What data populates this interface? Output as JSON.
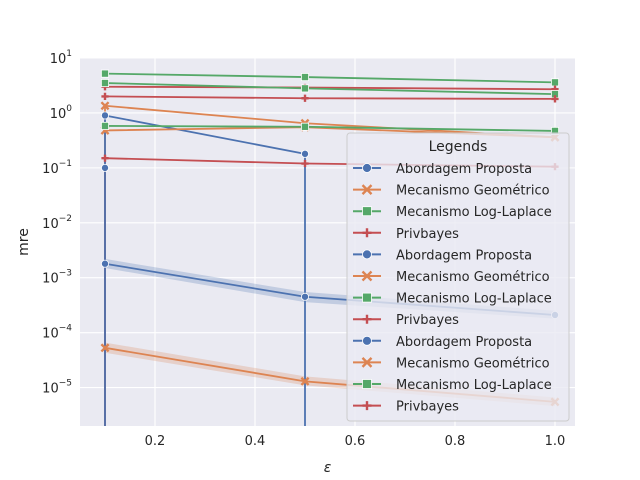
{
  "colors": {
    "background": "#eaeaf2",
    "grid": "#ffffff",
    "blue": "#4c72b0",
    "orange": "#dd8452",
    "green": "#55a868",
    "red": "#c44e52"
  },
  "chart_data": {
    "type": "line",
    "xlabel": "ε",
    "ylabel": "mre",
    "yscale": "log",
    "xlim": [
      0.05,
      1.04
    ],
    "ylim": [
      2e-06,
      10
    ],
    "grid": true,
    "background": "#eaeaf2",
    "xticks": [
      {
        "value": 0.2,
        "label": "0.2"
      },
      {
        "value": 0.4,
        "label": "0.4"
      },
      {
        "value": 0.6,
        "label": "0.6"
      },
      {
        "value": 0.8,
        "label": "0.8"
      },
      {
        "value": 1.0,
        "label": "1.0"
      }
    ],
    "yticks": [
      {
        "value": 1e-05,
        "base": "10",
        "exp": "−5"
      },
      {
        "value": 0.0001,
        "base": "10",
        "exp": "−4"
      },
      {
        "value": 0.001,
        "base": "10",
        "exp": "−3"
      },
      {
        "value": 0.01,
        "base": "10",
        "exp": "−2"
      },
      {
        "value": 0.1,
        "base": "10",
        "exp": "−1"
      },
      {
        "value": 1,
        "base": "10",
        "exp": "0"
      },
      {
        "value": 10,
        "base": "10",
        "exp": "1"
      }
    ],
    "legend": {
      "title": "Legends",
      "placement": "right",
      "entries": [
        {
          "label": "Abordagem Proposta",
          "color": "#4c72b0",
          "marker": "circle"
        },
        {
          "label": "Mecanismo Geométrico",
          "color": "#dd8452",
          "marker": "x"
        },
        {
          "label": "Mecanismo Log-Laplace",
          "color": "#55a868",
          "marker": "square"
        },
        {
          "label": "Privbayes",
          "color": "#c44e52",
          "marker": "plus"
        },
        {
          "label": "Abordagem Proposta",
          "color": "#4c72b0",
          "marker": "circle"
        },
        {
          "label": "Mecanismo Geométrico",
          "color": "#dd8452",
          "marker": "x"
        },
        {
          "label": "Mecanismo Log-Laplace",
          "color": "#55a868",
          "marker": "square"
        },
        {
          "label": "Privbayes",
          "color": "#c44e52",
          "marker": "plus"
        },
        {
          "label": "Abordagem Proposta",
          "color": "#4c72b0",
          "marker": "circle"
        },
        {
          "label": "Mecanismo Geométrico",
          "color": "#dd8452",
          "marker": "x"
        },
        {
          "label": "Mecanismo Log-Laplace",
          "color": "#55a868",
          "marker": "square"
        },
        {
          "label": "Privbayes",
          "color": "#c44e52",
          "marker": "plus"
        }
      ]
    },
    "series": [
      {
        "group": 1,
        "method": "Abordagem Proposta",
        "color": "#4c72b0",
        "marker": "circle",
        "x": [
          0.1,
          0.5
        ],
        "y": [
          0.9,
          0.18
        ]
      },
      {
        "group": 1,
        "method": "Mecanismo Geométrico",
        "color": "#dd8452",
        "marker": "x",
        "x": [
          0.1,
          0.5,
          1.0
        ],
        "y": [
          1.35,
          0.65,
          0.36
        ]
      },
      {
        "group": 1,
        "method": "Mecanismo Log-Laplace",
        "color": "#55a868",
        "marker": "square",
        "x": [
          0.1,
          0.5,
          1.0
        ],
        "y": [
          5.2,
          4.5,
          3.6
        ]
      },
      {
        "group": 1,
        "method": "Privbayes",
        "color": "#c44e52",
        "marker": "plus",
        "x": [
          0.1,
          0.5,
          1.0
        ],
        "y": [
          3.0,
          2.9,
          2.7
        ]
      },
      {
        "group": 2,
        "method": "Abordagem Proposta",
        "color": "#4c72b0",
        "marker": "circle",
        "x": [
          0.1
        ],
        "y": [
          0.1
        ]
      },
      {
        "group": 2,
        "method": "Mecanismo Geométrico",
        "color": "#dd8452",
        "marker": "x",
        "x": [
          0.1,
          0.5,
          1.0
        ],
        "y": [
          0.48,
          0.55,
          0.36
        ]
      },
      {
        "group": 2,
        "method": "Mecanismo Log-Laplace",
        "color": "#55a868",
        "marker": "square",
        "x": [
          0.1,
          0.5,
          1.0
        ],
        "y": [
          0.58,
          0.56,
          0.47
        ]
      },
      {
        "group": 2,
        "method": "Privbayes",
        "color": "#c44e52",
        "marker": "plus",
        "x": [
          0.1,
          0.5,
          1.0
        ],
        "y": [
          0.15,
          0.12,
          0.105
        ]
      },
      {
        "group": 3,
        "method": "Abordagem Proposta",
        "color": "#4c72b0",
        "marker": "circle",
        "x": [
          0.1,
          0.5,
          1.0
        ],
        "y": [
          0.0018,
          0.00045,
          0.00021
        ],
        "band_lo": [
          0.0015,
          0.00036,
          0.00018
        ],
        "band_hi": [
          0.0022,
          0.00055,
          0.00025
        ]
      },
      {
        "group": 3,
        "method": "Mecanismo Geométrico",
        "color": "#dd8452",
        "marker": "x",
        "x": [
          0.1,
          0.5,
          1.0
        ],
        "y": [
          5.3e-05,
          1.3e-05,
          5.5e-06
        ],
        "band_lo": [
          4.3e-05,
          1.1e-05,
          4.6e-06
        ],
        "band_hi": [
          6.6e-05,
          1.6e-05,
          6.6e-06
        ]
      },
      {
        "group": 3,
        "method": "Mecanismo Log-Laplace",
        "color": "#55a868",
        "marker": "square",
        "x": [
          0.1,
          0.5,
          1.0
        ],
        "y": [
          3.5,
          2.8,
          2.2
        ]
      },
      {
        "group": 3,
        "method": "Privbayes",
        "color": "#c44e52",
        "marker": "plus",
        "x": [
          0.1,
          0.5,
          1.0
        ],
        "y": [
          2.0,
          1.85,
          1.8
        ]
      }
    ],
    "drops": [
      {
        "color": "#dd8452",
        "x": 0.1,
        "from": 1.35
      },
      {
        "color": "#c44e52",
        "x": 0.1,
        "from": 0.15
      },
      {
        "color": "#4c72b0",
        "x": 0.1,
        "from": 0.9
      },
      {
        "color": "#4c72b0",
        "x": 0.5,
        "from": 0.18
      }
    ]
  }
}
